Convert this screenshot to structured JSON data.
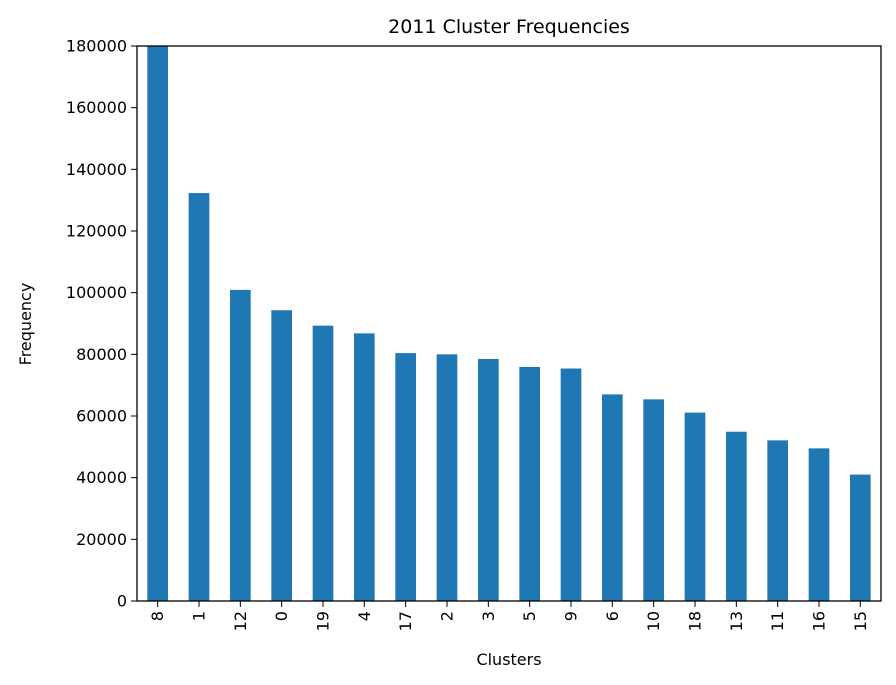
{
  "chart_data": {
    "type": "bar",
    "title": "2011 Cluster Frequencies",
    "xlabel": "Clusters",
    "ylabel": "Frequency",
    "categories": [
      "8",
      "1",
      "12",
      "0",
      "19",
      "4",
      "17",
      "2",
      "3",
      "5",
      "9",
      "6",
      "10",
      "18",
      "13",
      "11",
      "16",
      "15"
    ],
    "values": [
      180000,
      132300,
      100900,
      94300,
      89300,
      86800,
      80400,
      80000,
      78500,
      75900,
      75400,
      67000,
      65400,
      61100,
      54900,
      52100,
      49500,
      41000
    ],
    "ylim": [
      0,
      180000
    ],
    "yticks": [
      "0",
      "20000",
      "40000",
      "60000",
      "80000",
      "100000",
      "120000",
      "140000",
      "160000",
      "180000"
    ],
    "bar_color": "#1f77b4",
    "grid": false,
    "legend": "none"
  }
}
